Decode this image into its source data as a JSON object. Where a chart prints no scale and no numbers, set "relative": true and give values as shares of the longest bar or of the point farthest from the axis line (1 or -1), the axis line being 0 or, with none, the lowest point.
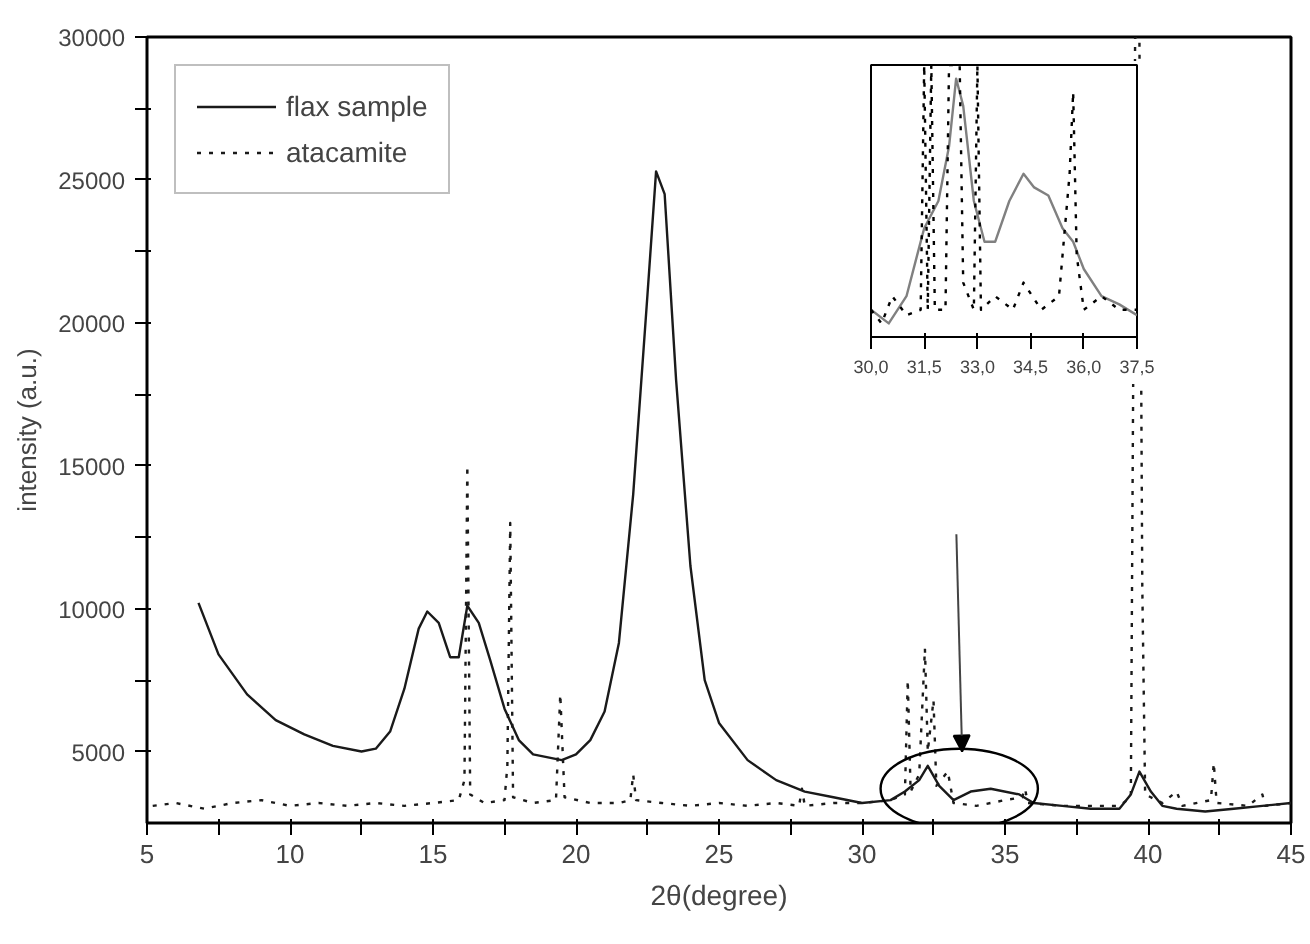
{
  "chart_data": [
    {
      "type": "line",
      "xlabel": "2θ(degree)",
      "ylabel": "intensity (a.u.)",
      "xlim": [
        5,
        45
      ],
      "ylim": [
        2500,
        30000
      ],
      "xticks": [
        5,
        {
          "value": 7.5,
          "label": null
        },
        10,
        {
          "value": 12.5,
          "label": null
        },
        15,
        {
          "value": 17.5,
          "label": null
        },
        20,
        {
          "value": 22.5,
          "label": null
        },
        25,
        {
          "value": 27.5,
          "label": null
        },
        30,
        {
          "value": 32.5,
          "label": null
        },
        35,
        {
          "value": 37.5,
          "label": null
        },
        40,
        {
          "value": 42.5,
          "label": null
        },
        45
      ],
      "yticks": [
        5000,
        {
          "value": 7500,
          "label": null
        },
        10000,
        {
          "value": 12500,
          "label": null
        },
        15000,
        {
          "value": 17500,
          "label": null
        },
        20000,
        {
          "value": 22500,
          "label": null
        },
        25000,
        {
          "value": 27500,
          "label": null
        },
        30000
      ],
      "legend": "top left",
      "grid": false,
      "series": [
        {
          "name": "flax sample",
          "color": "#1a1a1a",
          "line_style": "solid",
          "x": [
            6.8,
            7.5,
            8.5,
            9.5,
            10.5,
            11.5,
            12.5,
            13,
            13.5,
            14,
            14.5,
            14.8,
            15.2,
            15.6,
            15.9,
            16.2,
            16.6,
            17,
            17.5,
            18,
            18.5,
            19.5,
            20,
            20.5,
            21,
            21.5,
            22,
            22.5,
            22.8,
            23.1,
            23.5,
            24,
            24.5,
            25,
            26,
            27,
            28,
            29,
            30,
            31,
            31.5,
            32,
            32.3,
            32.7,
            33.2,
            33.8,
            34.5,
            35.5,
            36,
            37,
            38,
            39,
            39.4,
            39.7,
            40.1,
            40.5,
            41,
            42,
            43,
            44,
            45
          ],
          "values": [
            10200,
            8400,
            7000,
            6100,
            5600,
            5200,
            5000,
            5100,
            5700,
            7200,
            9300,
            9900,
            9500,
            8300,
            8300,
            10100,
            9500,
            8200,
            6500,
            5400,
            4900,
            4700,
            4900,
            5400,
            6400,
            8800,
            14000,
            21000,
            25300,
            24500,
            18000,
            11500,
            7500,
            6000,
            4700,
            4000,
            3600,
            3400,
            3200,
            3300,
            3600,
            4000,
            4500,
            3800,
            3300,
            3600,
            3700,
            3500,
            3200,
            3100,
            3000,
            3000,
            3500,
            4300,
            3600,
            3100,
            3000,
            2900,
            3000,
            3100,
            3200
          ]
        },
        {
          "name": "atacamite",
          "color": "#1a1a1a",
          "line_style": "dotted",
          "x": [
            5.2,
            6,
            7,
            8,
            9,
            10,
            11,
            12,
            13,
            14,
            15,
            15.9,
            16.1,
            16.2,
            16.3,
            16.8,
            17.5,
            17.6,
            17.7,
            17.8,
            18.5,
            19.3,
            19.45,
            19.6,
            20.5,
            21.5,
            21.9,
            22,
            22.1,
            23,
            24,
            25,
            26,
            27,
            27.8,
            27.9,
            28,
            29,
            30,
            31,
            31.5,
            31.6,
            31.7,
            32,
            32.2,
            32.3,
            32.5,
            32.6,
            33,
            33.2,
            34,
            35,
            35.6,
            35.7,
            35.8,
            37,
            38,
            39,
            39.4,
            39.55,
            39.7,
            39.8,
            39.9,
            40.5,
            41,
            41.2,
            42.2,
            42.3,
            42.4,
            43.5,
            44,
            44.1,
            45
          ],
          "values": [
            3100,
            3200,
            3000,
            3200,
            3300,
            3100,
            3200,
            3100,
            3200,
            3100,
            3200,
            3300,
            4000,
            15000,
            3500,
            3200,
            3300,
            4500,
            13000,
            3400,
            3200,
            3300,
            7000,
            3400,
            3200,
            3200,
            3300,
            4200,
            3300,
            3200,
            3100,
            3200,
            3100,
            3200,
            3100,
            3700,
            3100,
            3200,
            3200,
            3300,
            3500,
            7500,
            3600,
            4200,
            8600,
            5000,
            6800,
            3800,
            4300,
            3200,
            3100,
            3300,
            3400,
            3700,
            3200,
            3100,
            3100,
            3100,
            3400,
            30000,
            30000,
            10800,
            3500,
            3200,
            3600,
            3100,
            3300,
            4600,
            3200,
            3100,
            3500,
            3100,
            3200
          ]
        }
      ]
    },
    {
      "type": "line",
      "relative": true,
      "xlim": [
        30,
        37.5
      ],
      "tick_labels": "x",
      "grid": false,
      "legend": false,
      "xticks": [
        {
          "value": 30,
          "label": "30,0"
        },
        {
          "value": 31.5,
          "label": "31,5"
        },
        {
          "value": 33,
          "label": "33,0"
        },
        {
          "value": 34.5,
          "label": "34,5"
        },
        {
          "value": 36,
          "label": "36,0"
        },
        {
          "value": 37.5,
          "label": "37,5"
        }
      ],
      "series": [
        {
          "color": "#808080",
          "line_style": "solid",
          "x": [
            30.0,
            30.5,
            31.0,
            31.3,
            31.5,
            31.9,
            32.2,
            32.4,
            32.6,
            32.9,
            33.2,
            33.5,
            33.9,
            34.3,
            34.6,
            35.0,
            35.4,
            35.7,
            36.0,
            36.5,
            37.0,
            37.5
          ],
          "values": [
            0.1,
            0.05,
            0.15,
            0.3,
            0.4,
            0.5,
            0.7,
            0.95,
            0.85,
            0.5,
            0.35,
            0.35,
            0.5,
            0.6,
            0.55,
            0.52,
            0.4,
            0.35,
            0.25,
            0.15,
            0.12,
            0.08
          ]
        },
        {
          "color": "#000000",
          "line_style": "dotted",
          "x": [
            30.0,
            30.3,
            30.6,
            31.0,
            31.4,
            31.5,
            31.6,
            31.7,
            31.8,
            32.1,
            32.2,
            32.3,
            32.4,
            32.5,
            32.6,
            32.9,
            33.0,
            33.1,
            33.5,
            34.0,
            34.3,
            34.8,
            35.3,
            35.6,
            35.7,
            35.8,
            36.0,
            36.5,
            37.0,
            37.5
          ],
          "values": [
            0.1,
            0.05,
            0.15,
            0.08,
            0.1,
            1,
            0.1,
            1,
            0.1,
            0.1,
            1,
            1,
            1,
            1,
            0.2,
            0.1,
            1,
            0.1,
            0.15,
            0.1,
            0.2,
            0.1,
            0.15,
            0.6,
            0.9,
            0.3,
            0.1,
            0.15,
            0.1,
            0.1
          ]
        }
      ]
    }
  ]
}
